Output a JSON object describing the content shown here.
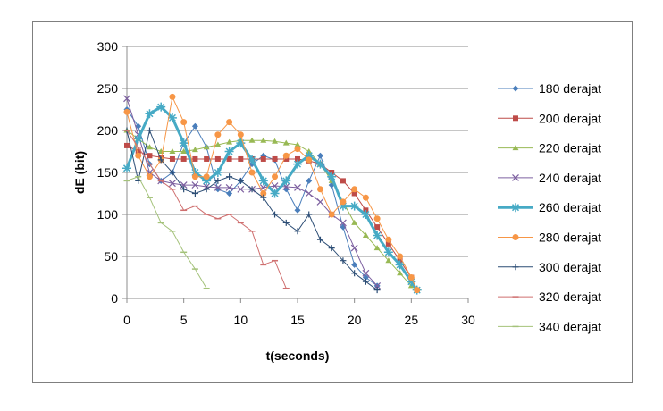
{
  "chart_data": {
    "type": "line",
    "title": "",
    "xlabel": "t(seconds)",
    "ylabel": "dE (bit)",
    "xlim": [
      0,
      30
    ],
    "ylim": [
      0,
      300
    ],
    "xticks": [
      0,
      5,
      10,
      15,
      20,
      25,
      30
    ],
    "yticks": [
      0,
      50,
      100,
      150,
      200,
      250,
      300
    ],
    "grid": "horizontal",
    "legend_position": "right",
    "series": [
      {
        "name": "180 derajat",
        "color": "#4a7ebb",
        "marker": "diamond",
        "width": 1,
        "x": [
          0,
          1,
          2,
          3,
          4,
          5,
          6,
          7,
          8,
          9,
          10,
          11,
          12,
          13,
          14,
          15,
          16,
          17,
          18,
          19,
          20,
          21,
          22
        ],
        "y": [
          225,
          205,
          160,
          140,
          150,
          185,
          205,
          180,
          130,
          125,
          140,
          160,
          170,
          165,
          130,
          105,
          140,
          170,
          135,
          85,
          40,
          25,
          15
        ]
      },
      {
        "name": "200 derajat",
        "color": "#be4b48",
        "marker": "square",
        "width": 1,
        "x": [
          0,
          1,
          2,
          3,
          4,
          5,
          6,
          7,
          8,
          9,
          10,
          11,
          12,
          13,
          14,
          15,
          16,
          17,
          18,
          19,
          20,
          21,
          22,
          23,
          24,
          25,
          25.5
        ],
        "y": [
          182,
          175,
          170,
          168,
          166,
          166,
          166,
          166,
          166,
          166,
          166,
          166,
          166,
          166,
          166,
          166,
          164,
          160,
          150,
          140,
          125,
          105,
          85,
          65,
          45,
          25,
          10
        ]
      },
      {
        "name": "220 derajat",
        "color": "#98b954",
        "marker": "triangle",
        "width": 1,
        "x": [
          0,
          1,
          2,
          3,
          4,
          5,
          6,
          7,
          8,
          9,
          10,
          11,
          12,
          13,
          14,
          15,
          16,
          17,
          18,
          19,
          20,
          21,
          22,
          23,
          24,
          25,
          25.5
        ],
        "y": [
          200,
          190,
          180,
          175,
          175,
          175,
          177,
          180,
          183,
          186,
          188,
          188,
          188,
          187,
          185,
          183,
          175,
          160,
          140,
          115,
          90,
          75,
          60,
          45,
          30,
          15,
          10
        ]
      },
      {
        "name": "240 derajat",
        "color": "#7d60a0",
        "marker": "x",
        "width": 1,
        "x": [
          0,
          1,
          2,
          3,
          4,
          5,
          6,
          7,
          8,
          9,
          10,
          11,
          12,
          13,
          14,
          15,
          16,
          17,
          18,
          19,
          20,
          21,
          22
        ],
        "y": [
          238,
          195,
          150,
          140,
          137,
          135,
          135,
          133,
          132,
          132,
          130,
          130,
          132,
          134,
          133,
          132,
          125,
          115,
          100,
          90,
          60,
          30,
          15
        ]
      },
      {
        "name": "260 derajat",
        "color": "#46aac5",
        "marker": "asterisk",
        "width": 3,
        "x": [
          0,
          1,
          2,
          3,
          4,
          5,
          6,
          7,
          8,
          9,
          10,
          11,
          12,
          13,
          14,
          15,
          16,
          17,
          18,
          19,
          20,
          21,
          22,
          23,
          24,
          25,
          25.5
        ],
        "y": [
          155,
          190,
          220,
          228,
          215,
          185,
          150,
          140,
          150,
          175,
          185,
          165,
          140,
          125,
          140,
          160,
          170,
          160,
          145,
          110,
          110,
          100,
          75,
          55,
          40,
          20,
          10
        ]
      },
      {
        "name": "280 derajat",
        "color": "#f79646",
        "marker": "circle",
        "width": 1,
        "x": [
          0,
          1,
          2,
          3,
          4,
          5,
          6,
          7,
          8,
          9,
          10,
          11,
          12,
          13,
          14,
          15,
          16,
          17,
          18,
          19,
          20,
          21,
          22,
          23,
          24,
          25,
          25.5
        ],
        "y": [
          222,
          170,
          145,
          165,
          240,
          210,
          145,
          145,
          195,
          210,
          195,
          150,
          125,
          145,
          170,
          178,
          165,
          130,
          100,
          115,
          130,
          120,
          95,
          70,
          50,
          25,
          10
        ]
      },
      {
        "name": "300 derajat",
        "color": "#2c4d75",
        "marker": "plus",
        "width": 1,
        "x": [
          0,
          1,
          2,
          3,
          4,
          5,
          6,
          7,
          8,
          9,
          10,
          11,
          12,
          13,
          14,
          15,
          16,
          17,
          18,
          19,
          20,
          21,
          22
        ],
        "y": [
          200,
          140,
          200,
          165,
          150,
          130,
          125,
          130,
          140,
          145,
          140,
          130,
          120,
          100,
          90,
          80,
          100,
          70,
          60,
          45,
          30,
          20,
          10
        ]
      },
      {
        "name": "320 derajat",
        "color": "#cf6f6f",
        "marker": "dash",
        "width": 1,
        "x": [
          0,
          1,
          2,
          3,
          4,
          5,
          6,
          7,
          8,
          9,
          10,
          11,
          12,
          13,
          14
        ],
        "y": [
          200,
          180,
          160,
          140,
          130,
          105,
          110,
          100,
          95,
          100,
          90,
          80,
          40,
          45,
          12
        ]
      },
      {
        "name": "340 derajat",
        "color": "#a4c27a",
        "marker": "dash",
        "width": 1,
        "x": [
          0,
          1,
          2,
          3,
          4,
          5,
          6,
          7
        ],
        "y": [
          140,
          145,
          120,
          90,
          80,
          55,
          35,
          12
        ]
      }
    ]
  }
}
